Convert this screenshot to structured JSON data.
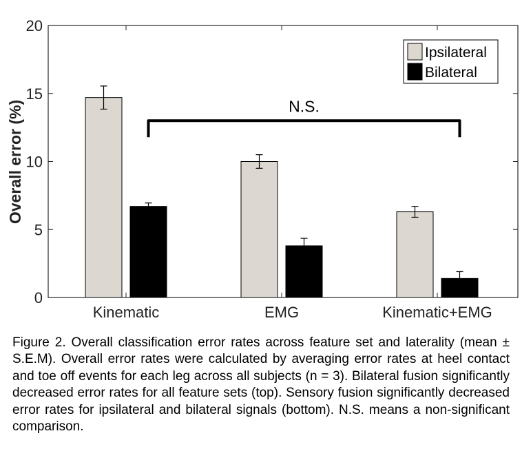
{
  "chart_data": {
    "type": "bar",
    "categories": [
      "Kinematic",
      "EMG",
      "Kinematic+EMG"
    ],
    "series": [
      {
        "name": "Ipsilateral",
        "color": "#dcd8d1",
        "values": [
          14.7,
          10.0,
          6.3
        ],
        "errors": [
          0.85,
          0.5,
          0.4
        ]
      },
      {
        "name": "Bilateral",
        "color": "#000000",
        "values": [
          6.7,
          3.8,
          1.4
        ],
        "errors": [
          0.25,
          0.55,
          0.5
        ]
      }
    ],
    "xlabel": "",
    "ylabel": "Overall error (%)",
    "ylim": [
      0,
      20
    ],
    "yticks": [
      0,
      5,
      10,
      15,
      20
    ],
    "grid": false,
    "legend_position": "top-right",
    "annotation": {
      "text": "N.S.",
      "from_category": "Kinematic",
      "to_category": "Kinematic+EMG",
      "y": 13
    }
  },
  "caption": "Figure 2. Overall classification error rates across feature set and laterality (mean ± S.E.M). Overall error rates were calculated by averaging error rates at heel contact and toe off events for each leg across all subjects (n = 3). Bilateral fusion significantly decreased error rates for all feature sets (top). Sensory fusion significantly decreased error rates for ipsilateral and bilateral signals (bottom). N.S. means a non-significant comparison."
}
